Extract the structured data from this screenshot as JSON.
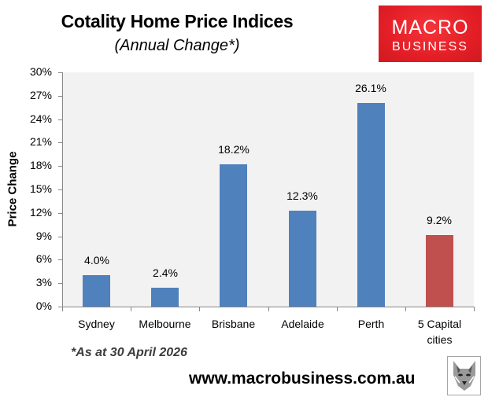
{
  "header": {
    "title": "Cotality Home Price Indices",
    "subtitle": "(Annual Change*)"
  },
  "logo": {
    "line1": "MACRO",
    "line2": "BUSINESS",
    "color": "#e41e26"
  },
  "footer": {
    "note": "*As at 30 April 2026",
    "url": "www.macrobusiness.com.au",
    "icon": "wolf-icon"
  },
  "chart_data": {
    "type": "bar",
    "title": "Cotality Home Price Indices",
    "subtitle": "(Annual Change*)",
    "xlabel": "",
    "ylabel": "Price Change",
    "ylim": [
      0,
      30
    ],
    "yticks": [
      "0%",
      "3%",
      "6%",
      "9%",
      "12%",
      "15%",
      "18%",
      "21%",
      "24%",
      "27%",
      "30%"
    ],
    "grid": false,
    "legend": null,
    "categories": [
      "Sydney",
      "Melbourne",
      "Brisbane",
      "Adelaide",
      "Perth",
      "5 Capital cities"
    ],
    "values": [
      4.0,
      2.4,
      18.2,
      12.3,
      26.1,
      9.2
    ],
    "labels": [
      "4.0%",
      "2.4%",
      "18.2%",
      "12.3%",
      "26.1%",
      "9.2%"
    ],
    "colors": [
      "#4f81bd",
      "#4f81bd",
      "#4f81bd",
      "#4f81bd",
      "#4f81bd",
      "#c0504d"
    ],
    "annotation": "*As at 30 April 2026"
  }
}
